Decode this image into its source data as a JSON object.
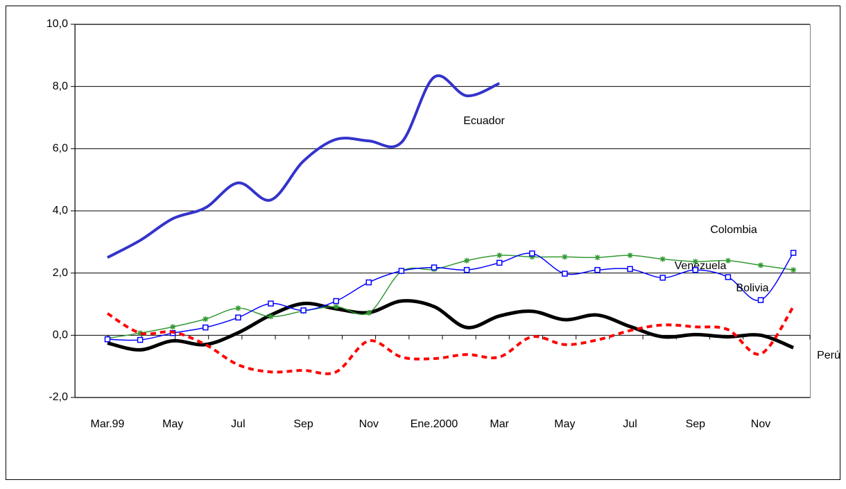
{
  "chart_data": {
    "type": "line",
    "categories": [
      "Mar.99",
      null,
      "May",
      null,
      "Jul",
      null,
      "Sep",
      null,
      "Nov",
      null,
      "Ene.2000",
      null,
      "Mar",
      null,
      "May",
      null,
      "Jul",
      null,
      "Sep",
      null,
      "Nov",
      null
    ],
    "ylim": [
      -2,
      10
    ],
    "yticks": [
      {
        "value": -2,
        "label": "-2,0"
      },
      {
        "value": 0,
        "label": "0,0"
      },
      {
        "value": 2,
        "label": "2,0"
      },
      {
        "value": 4,
        "label": "4,0"
      },
      {
        "value": 6,
        "label": "6,0"
      },
      {
        "value": 8,
        "label": "8,0"
      },
      {
        "value": 10,
        "label": "10,0"
      }
    ],
    "grid": true,
    "series": [
      {
        "name": "Ecuador",
        "color": "#3333cc",
        "values": [
          2.5,
          3.05,
          3.75,
          4.1,
          4.9,
          4.35,
          5.6,
          6.3,
          6.25,
          6.2,
          8.3,
          7.7,
          8.1,
          null,
          null,
          null,
          null,
          null,
          null,
          null,
          null,
          null
        ]
      },
      {
        "name": "Colombia",
        "color": "#000000",
        "values": [
          -0.25,
          -0.47,
          -0.18,
          -0.3,
          0.08,
          0.65,
          1.02,
          0.85,
          0.73,
          1.1,
          0.92,
          0.25,
          0.62,
          0.77,
          0.5,
          0.65,
          0.28,
          -0.05,
          0.02,
          -0.05,
          0,
          -0.4
        ]
      },
      {
        "name": "Venezuela",
        "color": "#339933",
        "values": [
          -0.1,
          0.07,
          0.27,
          0.52,
          0.87,
          0.6,
          0.78,
          0.92,
          0.72,
          2.05,
          2.12,
          2.4,
          2.57,
          2.52,
          2.52,
          2.5,
          2.57,
          2.45,
          2.37,
          2.4,
          2.25,
          2.1
        ]
      },
      {
        "name": "Bolivia",
        "color": "#0000ff",
        "values": [
          -0.13,
          -0.15,
          0.07,
          0.25,
          0.57,
          1.02,
          0.8,
          1.1,
          1.7,
          2.07,
          2.18,
          2.1,
          2.33,
          2.63,
          1.98,
          2.1,
          2.13,
          1.85,
          2.1,
          1.87,
          1.13,
          2.65
        ]
      },
      {
        "name": "Perú",
        "color": "#ff0000",
        "values": [
          0.7,
          0.07,
          0.1,
          -0.3,
          -0.95,
          -1.18,
          -1.13,
          -1.18,
          -0.18,
          -0.7,
          -0.75,
          -0.62,
          -0.7,
          -0.05,
          -0.3,
          -0.15,
          0.15,
          0.33,
          0.27,
          0.18,
          -0.6,
          0.92
        ]
      }
    ]
  }
}
